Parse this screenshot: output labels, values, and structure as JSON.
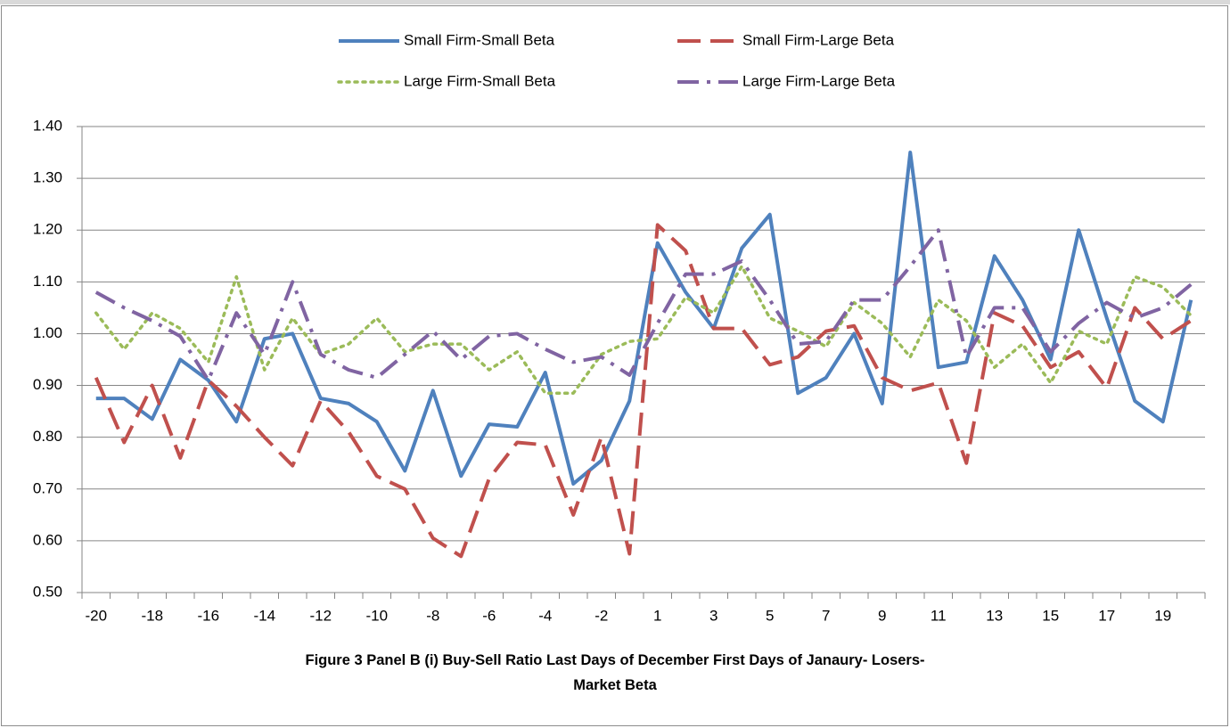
{
  "chart_data": {
    "type": "line",
    "title": "Figure 3 Panel B (i) Buy-Sell Ratio Last Days of December First Days of Janaury- Losers- Market Beta",
    "categories": [
      "-20",
      null,
      "-18",
      null,
      "-16",
      null,
      "-14",
      null,
      "-12",
      null,
      "-10",
      null,
      "-8",
      null,
      "-6",
      null,
      "-4",
      null,
      "-2",
      null,
      "1",
      null,
      "3",
      null,
      "5",
      null,
      "7",
      null,
      "9",
      null,
      "11",
      null,
      "13",
      null,
      "15",
      null,
      "17",
      null,
      "19",
      null
    ],
    "series": [
      {
        "name": "Small Firm-Small Beta",
        "color": "#4f81bd",
        "dash": "solid",
        "values": [
          0.875,
          0.875,
          0.835,
          0.95,
          0.91,
          0.83,
          0.99,
          1.0,
          0.875,
          0.865,
          0.83,
          0.735,
          0.89,
          0.725,
          0.825,
          0.82,
          0.925,
          0.71,
          0.755,
          0.87,
          1.175,
          1.08,
          1.01,
          1.165,
          1.23,
          0.885,
          0.915,
          1.0,
          0.865,
          1.35,
          0.935,
          0.945,
          1.15,
          1.065,
          0.95,
          1.2,
          1.03,
          0.87,
          0.83,
          1.065
        ]
      },
      {
        "name": "Small Firm-Large Beta",
        "color": "#c0504d",
        "dash": "dash",
        "values": [
          0.915,
          0.79,
          0.9,
          0.76,
          0.91,
          0.86,
          0.8,
          0.745,
          0.87,
          0.81,
          0.725,
          0.7,
          0.605,
          0.57,
          0.72,
          0.79,
          0.785,
          0.65,
          0.8,
          0.575,
          1.21,
          1.16,
          1.01,
          1.01,
          0.94,
          0.955,
          1.005,
          1.015,
          0.915,
          0.89,
          0.905,
          0.75,
          1.04,
          1.015,
          0.935,
          0.965,
          0.895,
          1.05,
          0.99,
          1.025
        ]
      },
      {
        "name": "Large Firm-Small Beta",
        "color": "#9bbb59",
        "dash": "dot",
        "values": [
          1.04,
          0.97,
          1.04,
          1.01,
          0.945,
          1.11,
          0.93,
          1.03,
          0.96,
          0.98,
          1.03,
          0.965,
          0.98,
          0.98,
          0.93,
          0.965,
          0.885,
          0.885,
          0.96,
          0.985,
          0.99,
          1.07,
          1.04,
          1.13,
          1.03,
          1.005,
          0.975,
          1.06,
          1.02,
          0.955,
          1.065,
          1.025,
          0.935,
          0.98,
          0.905,
          1.005,
          0.98,
          1.11,
          1.09,
          1.035
        ]
      },
      {
        "name": "Large Firm-Large Beta",
        "color": "#8064a2",
        "dash": "dashdot",
        "values": [
          1.08,
          1.05,
          1.025,
          0.995,
          0.91,
          1.04,
          0.96,
          1.1,
          0.96,
          0.93,
          0.915,
          0.96,
          1.005,
          0.95,
          0.995,
          1.0,
          0.97,
          0.945,
          0.955,
          0.92,
          1.02,
          1.115,
          1.115,
          1.14,
          1.065,
          0.98,
          0.985,
          1.065,
          1.065,
          1.13,
          1.2,
          0.955,
          1.05,
          1.05,
          0.965,
          1.02,
          1.06,
          1.03,
          1.05,
          1.095
        ]
      }
    ],
    "ylim": [
      0.5,
      1.4
    ],
    "yticks": [
      {
        "value": 0.5,
        "label": "0.50"
      },
      {
        "value": 0.6,
        "label": "0.60"
      },
      {
        "value": 0.7,
        "label": "0.70"
      },
      {
        "value": 0.8,
        "label": "0.80"
      },
      {
        "value": 0.9,
        "label": "0.90"
      },
      {
        "value": 1.0,
        "label": "1.00"
      },
      {
        "value": 1.1,
        "label": "1.10"
      },
      {
        "value": 1.2,
        "label": "1.20"
      },
      {
        "value": 1.3,
        "label": "1.30"
      },
      {
        "value": 1.4,
        "label": "1.40"
      }
    ],
    "grid": true,
    "legend": "top"
  }
}
